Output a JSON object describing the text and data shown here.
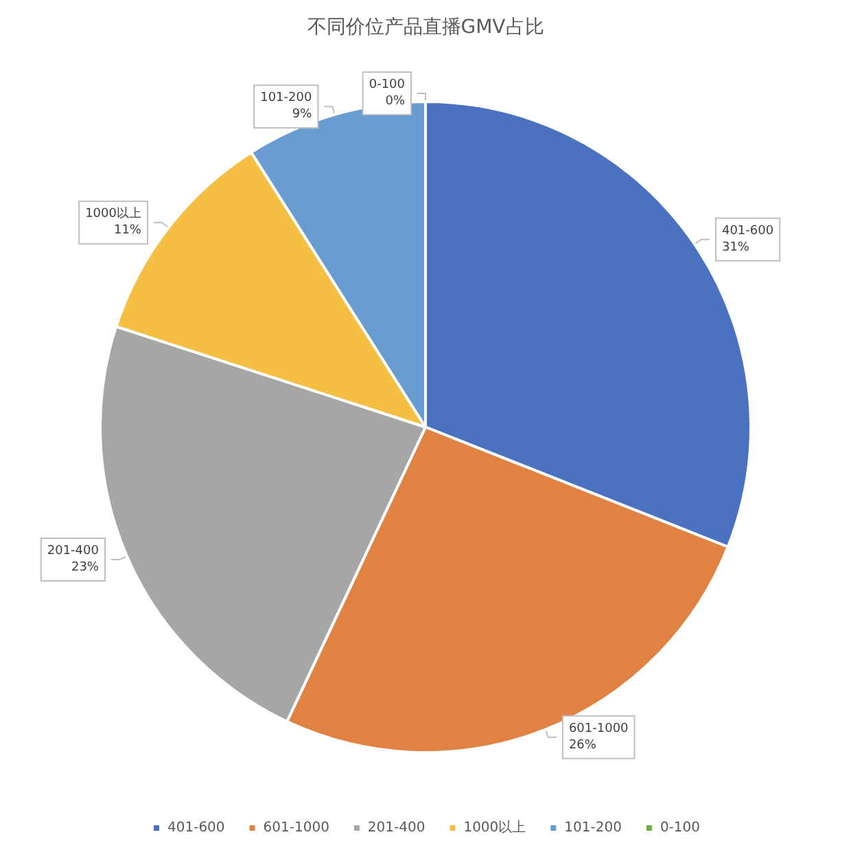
{
  "chart_data": {
    "type": "pie",
    "title": "不同价位产品直播GMV占比",
    "categories": [
      "401-600",
      "601-1000",
      "201-400",
      "1000以上",
      "101-200",
      "0-100"
    ],
    "values": [
      31,
      26,
      23,
      11,
      9,
      0
    ],
    "value_labels": [
      "31%",
      "26%",
      "23%",
      "11%",
      "9%",
      "0%"
    ],
    "colors": [
      "#4a72c0",
      "#e08242",
      "#a5a6a5",
      "#f4bf42",
      "#699dd2",
      "#70ad47"
    ],
    "legend": "bottom"
  }
}
